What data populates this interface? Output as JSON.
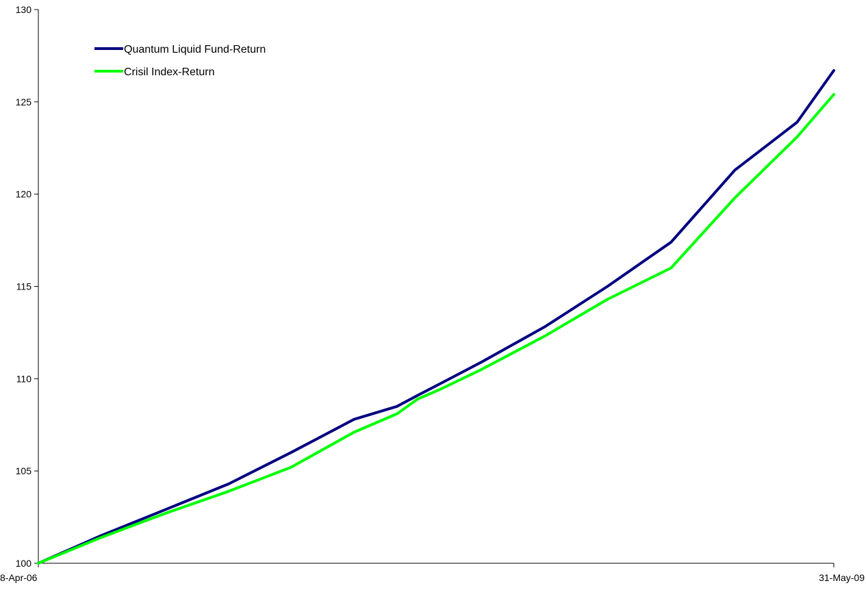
{
  "chart_data": {
    "type": "line",
    "title": "",
    "xlabel": "",
    "ylabel": "",
    "x_tick_labels": [
      "8-Apr-06",
      "31-May-09"
    ],
    "ylim": [
      100,
      130
    ],
    "y_ticks": [
      100,
      105,
      110,
      115,
      120,
      125,
      130
    ],
    "grid": false,
    "legend_position": "top-left",
    "x_dates": [
      "2006-04-08",
      "2006-07-08",
      "2006-10-08",
      "2007-01-08",
      "2007-04-08",
      "2007-07-08",
      "2007-09-08",
      "2007-10-08",
      "2007-11-08",
      "2008-01-08",
      "2008-04-08",
      "2008-07-08",
      "2008-10-08",
      "2009-01-08",
      "2009-04-08",
      "2009-05-31"
    ],
    "series": [
      {
        "name": "Quantum Liquid Fund-Return",
        "color": "#000080",
        "values": [
          100.0,
          101.5,
          102.9,
          104.3,
          106.0,
          107.8,
          108.5,
          109.1,
          109.7,
          110.9,
          112.8,
          115.0,
          117.4,
          121.3,
          123.9,
          126.7
        ]
      },
      {
        "name": "Crisil Index-Return",
        "color": "#00ff00",
        "values": [
          100.0,
          101.4,
          102.7,
          103.9,
          105.2,
          107.1,
          108.1,
          108.9,
          109.4,
          110.5,
          112.3,
          114.3,
          116.0,
          119.8,
          123.1,
          125.4
        ]
      }
    ]
  }
}
